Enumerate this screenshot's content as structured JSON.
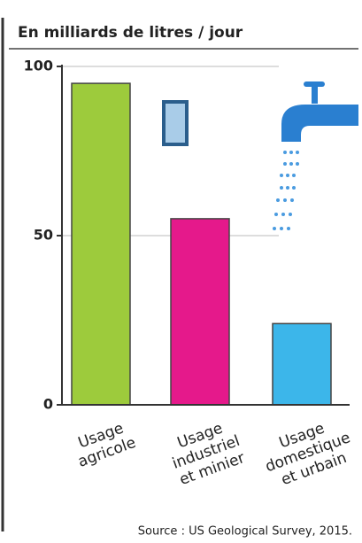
{
  "chart_data": {
    "type": "bar",
    "title": "En milliards de litres / jour",
    "categories": [
      "Usage\nagricole",
      "Usage\nindustriel\net minier",
      "Usage\ndomestique\net urbain"
    ],
    "values": [
      95,
      55,
      24
    ],
    "colors": [
      "#9dcb3c",
      "#e5198b",
      "#3cb6ea"
    ],
    "ylim": [
      0,
      100
    ],
    "yticks": [
      0,
      50,
      100
    ],
    "grid": true,
    "source": "Source : US Geological Survey, 2015."
  }
}
